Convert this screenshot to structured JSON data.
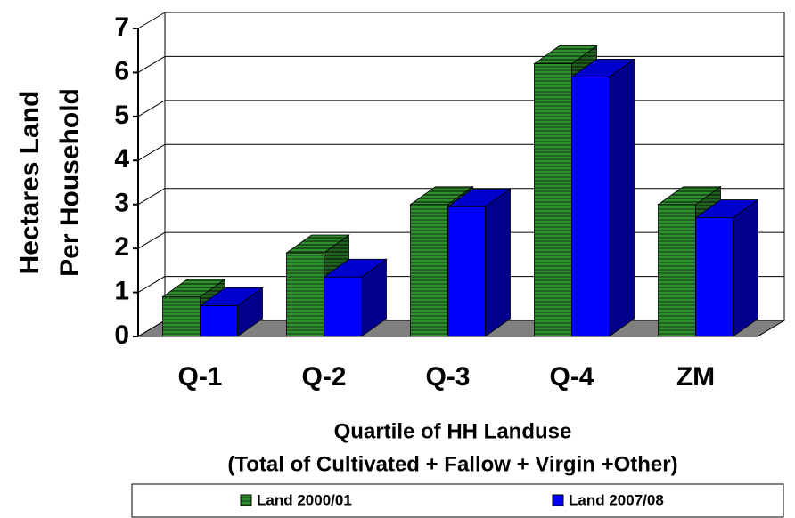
{
  "chart_data": {
    "type": "bar3d",
    "y_label": [
      "Hectares  Land",
      "Per Household"
    ],
    "x_label": [
      "Quartile of HH Landuse",
      "(Total of Cultivated + Fallow + Virgin +Other)"
    ],
    "categories": [
      "Q-1",
      "Q-2",
      "Q-3",
      "Q-4",
      "ZM"
    ],
    "series": [
      {
        "name": "Land 2000/01",
        "color": "#2f8f2f",
        "pattern": "stripes",
        "values": [
          0.9,
          1.9,
          3.0,
          6.2,
          3.0
        ]
      },
      {
        "name": "Land 2007/08",
        "color": "#0000ff",
        "values": [
          0.7,
          1.35,
          2.95,
          5.9,
          2.7
        ]
      }
    ],
    "ylim": [
      0,
      7
    ],
    "yticks": [
      0,
      1,
      2,
      3,
      4,
      5,
      6,
      7
    ],
    "grid": true,
    "legend": "bottom"
  }
}
